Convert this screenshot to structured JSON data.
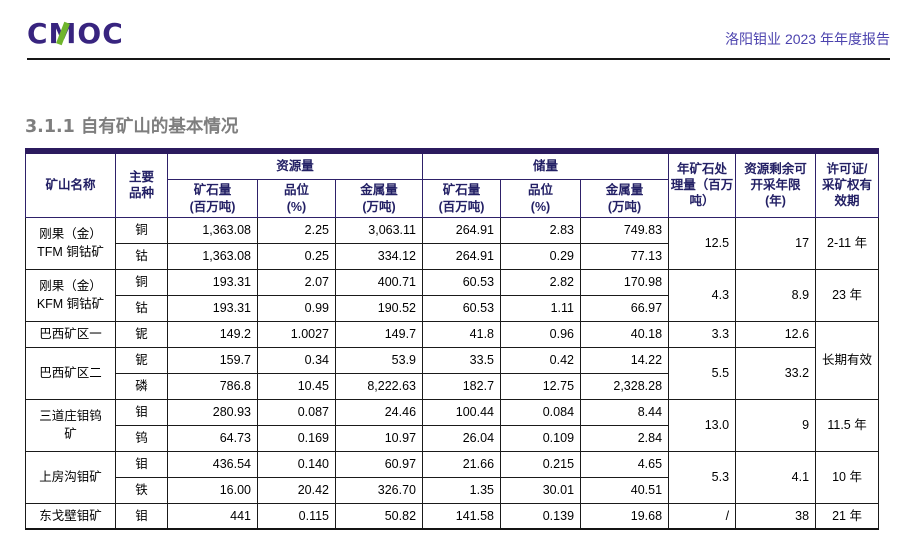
{
  "header": {
    "logo_text": "CMOC",
    "report_title": "洛阳钼业 2023 年年度报告"
  },
  "section_title": "3.1.1 自有矿山的基本情况",
  "colors": {
    "accent_purple": "#2e2169",
    "logo_green": "#6fb52c",
    "title_gray": "#7e7e7e"
  },
  "table": {
    "columns": {
      "mine_name": "矿山名称",
      "main_variety": "主要\n品种",
      "resources_group": "资源量",
      "reserves_group": "储量",
      "ore_amount": "矿石量\n(百万吨)",
      "grade": "品位\n(%)",
      "metal_amount": "金属量\n(万吨)",
      "annual_processing": "年矿石处\n理量（百万\n吨）",
      "remaining_years": "资源剩余可\n开采年限\n(年)",
      "license": "许可证/\n采矿权有\n效期"
    },
    "mines": [
      {
        "name": "刚果（金）\nTFM 铜钴矿",
        "rows": [
          {
            "variety": "铜",
            "res_ore": "1,363.08",
            "res_grade": "2.25",
            "res_metal": "3,063.11",
            "rsv_ore": "264.91",
            "rsv_grade": "2.83",
            "rsv_metal": "749.83"
          },
          {
            "variety": "钴",
            "res_ore": "1,363.08",
            "res_grade": "0.25",
            "res_metal": "334.12",
            "rsv_ore": "264.91",
            "rsv_grade": "0.29",
            "rsv_metal": "77.13"
          }
        ],
        "annual_processing": "12.5",
        "remaining_years": "17",
        "license": "2-11 年"
      },
      {
        "name": "刚果（金）\nKFM 铜钴矿",
        "rows": [
          {
            "variety": "铜",
            "res_ore": "193.31",
            "res_grade": "2.07",
            "res_metal": "400.71",
            "rsv_ore": "60.53",
            "rsv_grade": "2.82",
            "rsv_metal": "170.98"
          },
          {
            "variety": "钴",
            "res_ore": "193.31",
            "res_grade": "0.99",
            "res_metal": "190.52",
            "rsv_ore": "60.53",
            "rsv_grade": "1.11",
            "rsv_metal": "66.97"
          }
        ],
        "annual_processing": "4.3",
        "remaining_years": "8.9",
        "license": "23 年"
      },
      {
        "name": "巴西矿区一",
        "rows": [
          {
            "variety": "铌",
            "res_ore": "149.2",
            "res_grade": "1.0027",
            "res_metal": "149.7",
            "rsv_ore": "41.8",
            "rsv_grade": "0.96",
            "rsv_metal": "40.18"
          }
        ],
        "annual_processing": "3.3",
        "remaining_years": "12.6",
        "license": "长期有效",
        "license_extra_rows": 2
      },
      {
        "name": "巴西矿区二",
        "rows": [
          {
            "variety": "铌",
            "res_ore": "159.7",
            "res_grade": "0.34",
            "res_metal": "53.9",
            "rsv_ore": "33.5",
            "rsv_grade": "0.42",
            "rsv_metal": "14.22"
          },
          {
            "variety": "磷",
            "res_ore": "786.8",
            "res_grade": "10.45",
            "res_metal": "8,222.63",
            "rsv_ore": "182.7",
            "rsv_grade": "12.75",
            "rsv_metal": "2,328.28"
          }
        ],
        "annual_processing": "5.5",
        "remaining_years": "33.2",
        "license": null
      },
      {
        "name": "三道庄钼钨\n矿",
        "rows": [
          {
            "variety": "钼",
            "res_ore": "280.93",
            "res_grade": "0.087",
            "res_metal": "24.46",
            "rsv_ore": "100.44",
            "rsv_grade": "0.084",
            "rsv_metal": "8.44"
          },
          {
            "variety": "钨",
            "res_ore": "64.73",
            "res_grade": "0.169",
            "res_metal": "10.97",
            "rsv_ore": "26.04",
            "rsv_grade": "0.109",
            "rsv_metal": "2.84"
          }
        ],
        "annual_processing": "13.0",
        "remaining_years": "9",
        "license": "11.5 年"
      },
      {
        "name": "上房沟钼矿",
        "rows": [
          {
            "variety": "钼",
            "res_ore": "436.54",
            "res_grade": "0.140",
            "res_metal": "60.97",
            "rsv_ore": "21.66",
            "rsv_grade": "0.215",
            "rsv_metal": "4.65"
          },
          {
            "variety": "铁",
            "res_ore": "16.00",
            "res_grade": "20.42",
            "res_metal": "326.70",
            "rsv_ore": "1.35",
            "rsv_grade": "30.01",
            "rsv_metal": "40.51"
          }
        ],
        "annual_processing": "5.3",
        "remaining_years": "4.1",
        "license": "10 年"
      },
      {
        "name": "东戈壁钼矿",
        "rows": [
          {
            "variety": "钼",
            "res_ore": "441",
            "res_grade": "0.115",
            "res_metal": "50.82",
            "rsv_ore": "141.58",
            "rsv_grade": "0.139",
            "rsv_metal": "19.68"
          }
        ],
        "annual_processing": "/",
        "remaining_years": "38",
        "license": "21 年"
      }
    ]
  }
}
